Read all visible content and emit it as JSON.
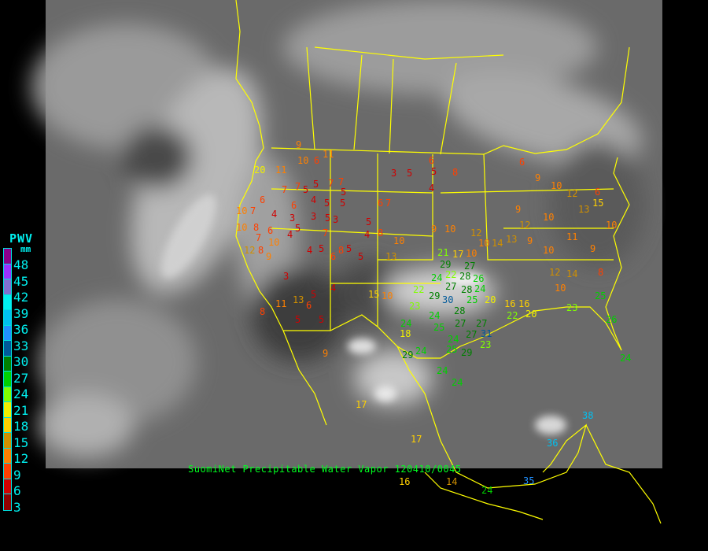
{
  "caption": "SuomiNet Precipitable Water Vapor 120410/0045",
  "legend": {
    "title": "PWV",
    "unit": "mm",
    "labels": [
      "48",
      "45",
      "42",
      "39",
      "36",
      "33",
      "30",
      "27",
      "24",
      "21",
      "18",
      "15",
      "12",
      "9",
      "6",
      "3"
    ],
    "colors": [
      "#8b008b",
      "#9a32ff",
      "#8070d0",
      "#00f0f0",
      "#00c0f0",
      "#2090ff",
      "#005a9a",
      "#008000",
      "#00d000",
      "#80ff00",
      "#f0f000",
      "#ffd000",
      "#d09000",
      "#ff8000",
      "#ff4000",
      "#d00000",
      "#900000"
    ]
  },
  "colors": {
    "boundaries": "#ffff00",
    "background": "#000000"
  },
  "stations": [
    "20",
    "11",
    "9",
    "10",
    "11",
    "7",
    "6",
    "5",
    "7",
    "4",
    "5",
    "5",
    "5",
    "7",
    "7",
    "5",
    "6",
    "10",
    "7",
    "6",
    "4",
    "10",
    "8",
    "6",
    "3",
    "3",
    "5",
    "3",
    "5",
    "4",
    "12",
    "8",
    "7",
    "10",
    "9",
    "5",
    "4",
    "4",
    "5",
    "6",
    "5",
    "5",
    "6",
    "7",
    "3",
    "5",
    "6",
    "4",
    "5",
    "8",
    "9",
    "10",
    "12",
    "10",
    "14",
    "13",
    "10",
    "17",
    "21",
    "29",
    "22",
    "24",
    "28",
    "27",
    "26",
    "24",
    "22",
    "29",
    "30",
    "27",
    "28",
    "25",
    "23",
    "28",
    "20",
    "24",
    "25",
    "27",
    "27",
    "27",
    "31",
    "24",
    "25",
    "29",
    "23",
    "24",
    "29",
    "18",
    "24",
    "16",
    "22",
    "15",
    "10",
    "8",
    "10",
    "13",
    "10",
    "12",
    "14",
    "10",
    "16",
    "20",
    "23",
    "25",
    "26",
    "24",
    "24",
    "24",
    "17",
    "17",
    "36",
    "38",
    "35",
    "24",
    "16",
    "14",
    "9",
    "8",
    "11",
    "13",
    "5",
    "4",
    "5",
    "6",
    "5",
    "3",
    "7",
    "8",
    "6",
    "9",
    "10",
    "12",
    "13",
    "15",
    "6",
    "10",
    "9",
    "12",
    "9",
    "10",
    "11",
    "9",
    "8",
    "10",
    "14"
  ]
}
